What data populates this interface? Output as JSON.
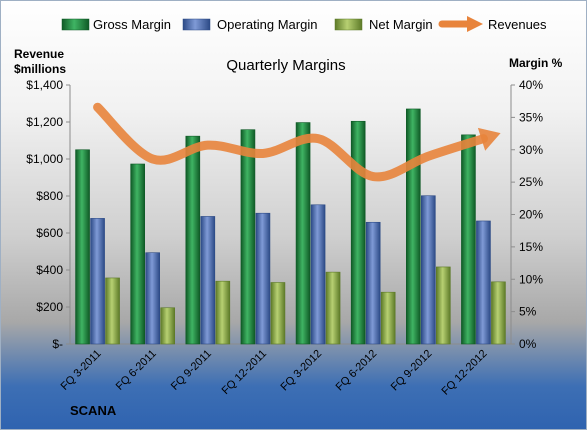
{
  "chart_data": {
    "type": "bar",
    "title": "Quarterly Margins",
    "company": "SCANA",
    "y_left_label_line1": "Revenue",
    "y_left_label_line2": "$millions",
    "y_right_label": "Margin %",
    "categories": [
      "FQ 3-2011",
      "FQ 6-2011",
      "FQ 9-2011",
      "FQ 12-2011",
      "FQ 3-2012",
      "FQ 6-2012",
      "FQ 9-2012",
      "FQ 12-2012"
    ],
    "ylim_left": [
      0,
      1400
    ],
    "ylim_right": [
      0,
      40
    ],
    "left_ticks": [
      "$-",
      "$200",
      "$400",
      "$600",
      "$800",
      "$1,000",
      "$1,200",
      "$1,400"
    ],
    "right_ticks": [
      "0%",
      "5%",
      "10%",
      "15%",
      "20%",
      "25%",
      "30%",
      "35%",
      "40%"
    ],
    "legend_position": "top",
    "grid": false,
    "series": [
      {
        "name": "Gross Margin",
        "axis": "right",
        "color": "#1e8a3e",
        "values": [
          30.0,
          27.8,
          32.1,
          33.1,
          34.2,
          34.4,
          36.3,
          32.3
        ]
      },
      {
        "name": "Operating Margin",
        "axis": "right",
        "color": "#4a6fb8",
        "values": [
          19.4,
          14.1,
          19.7,
          20.2,
          21.5,
          18.8,
          22.9,
          19.0
        ]
      },
      {
        "name": "Net Margin",
        "axis": "right",
        "color": "#8fab45",
        "values": [
          10.2,
          5.6,
          9.7,
          9.5,
          11.1,
          8.0,
          11.9,
          9.6
        ]
      },
      {
        "name": "Revenues",
        "axis": "left",
        "type": "line",
        "color": "#e8843c",
        "values": [
          1280,
          1000,
          1075,
          1030,
          1110,
          905,
          1015,
          1110
        ]
      }
    ]
  }
}
